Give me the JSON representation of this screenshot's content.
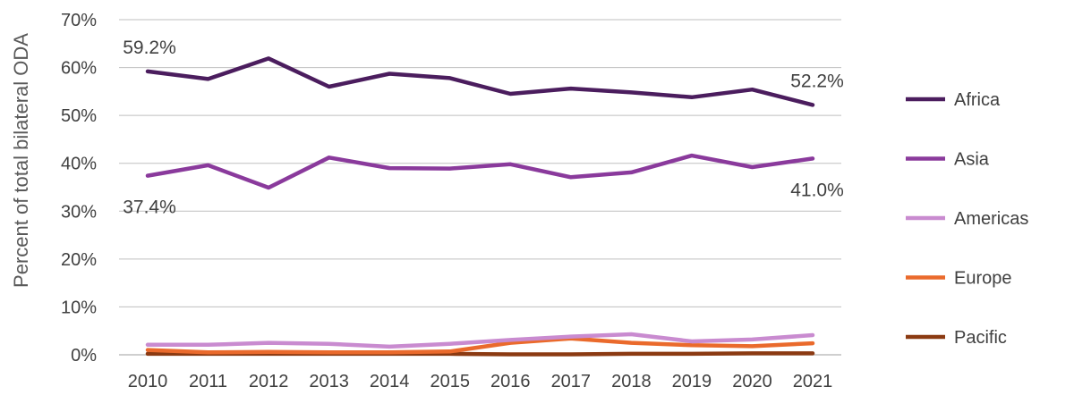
{
  "chart_data": {
    "type": "line",
    "title": "",
    "xlabel": "",
    "ylabel": "Percent of total bilateral ODA",
    "categories": [
      "2010",
      "2011",
      "2012",
      "2013",
      "2014",
      "2015",
      "2016",
      "2017",
      "2018",
      "2019",
      "2020",
      "2021"
    ],
    "y_ticks": [
      "0%",
      "10%",
      "20%",
      "30%",
      "40%",
      "50%",
      "60%",
      "70%"
    ],
    "ylim": [
      0,
      70
    ],
    "grid": true,
    "legend_position": "right",
    "series": [
      {
        "name": "Africa",
        "color": "#4b1d5e",
        "values": [
          59.2,
          57.6,
          61.9,
          56.0,
          58.7,
          57.8,
          54.5,
          55.6,
          54.8,
          53.8,
          55.4,
          52.2
        ]
      },
      {
        "name": "Asia",
        "color": "#8a3a9c",
        "values": [
          37.4,
          39.6,
          34.9,
          41.2,
          39.0,
          38.9,
          39.8,
          37.1,
          38.1,
          41.6,
          39.2,
          41.0
        ]
      },
      {
        "name": "Americas",
        "color": "#c98bd0",
        "values": [
          2.1,
          2.1,
          2.5,
          2.3,
          1.7,
          2.3,
          3.1,
          3.8,
          4.3,
          2.8,
          3.2,
          4.1
        ]
      },
      {
        "name": "Europe",
        "color": "#ea6a2c",
        "values": [
          1.0,
          0.5,
          0.6,
          0.5,
          0.5,
          0.7,
          2.5,
          3.4,
          2.5,
          2.0,
          1.8,
          2.4
        ]
      },
      {
        "name": "Pacific",
        "color": "#8b3a12",
        "values": [
          0.2,
          0.2,
          0.2,
          0.2,
          0.2,
          0.2,
          0.1,
          0.1,
          0.2,
          0.2,
          0.3,
          0.3
        ]
      }
    ],
    "annotations": [
      {
        "text": "59.2%",
        "series": "Africa",
        "category": "2010"
      },
      {
        "text": "52.2%",
        "series": "Africa",
        "category": "2021"
      },
      {
        "text": "37.4%",
        "series": "Asia",
        "category": "2010"
      },
      {
        "text": "41.0%",
        "series": "Asia",
        "category": "2021"
      }
    ]
  }
}
